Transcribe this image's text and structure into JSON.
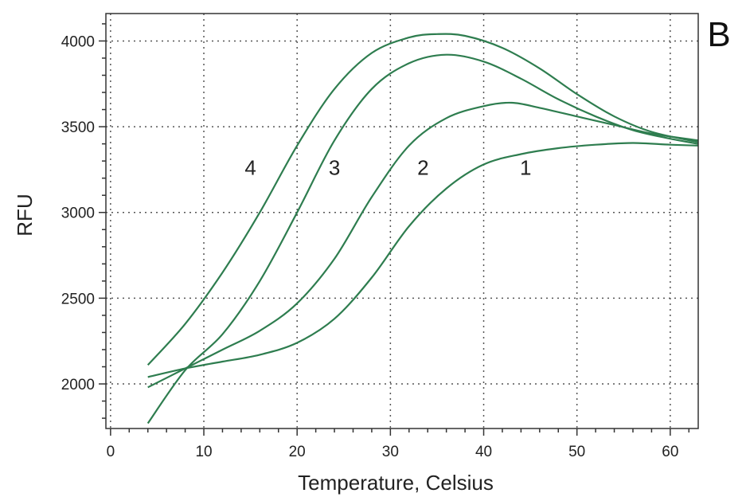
{
  "panel_label": "B",
  "colors": {
    "series": "#2e7d4f",
    "grid": "#555555",
    "frame": "#333333"
  },
  "chart_data": {
    "type": "line",
    "title": "",
    "xlabel": "Temperature, Celsius",
    "ylabel": "RFU",
    "xlim": [
      -0.5,
      63
    ],
    "ylim": [
      1740,
      4160
    ],
    "xticks": [
      0,
      10,
      20,
      30,
      40,
      50,
      60
    ],
    "xtick_labels": [
      "0",
      "10",
      "20",
      "30",
      "40",
      "50",
      "60"
    ],
    "yticks": [
      2000,
      2500,
      3000,
      3500,
      4000
    ],
    "ytick_labels": [
      "2000",
      "2500",
      "3000",
      "3500",
      "4000"
    ],
    "grid": true,
    "series": [
      {
        "name": "1",
        "points": [
          [
            4,
            2040
          ],
          [
            8,
            2090
          ],
          [
            12,
            2130
          ],
          [
            16,
            2170
          ],
          [
            20,
            2240
          ],
          [
            24,
            2380
          ],
          [
            28,
            2620
          ],
          [
            32,
            2920
          ],
          [
            36,
            3140
          ],
          [
            40,
            3280
          ],
          [
            44,
            3340
          ],
          [
            48,
            3375
          ],
          [
            52,
            3395
          ],
          [
            56,
            3405
          ],
          [
            60,
            3395
          ],
          [
            63,
            3390
          ]
        ]
      },
      {
        "name": "2",
        "points": [
          [
            4,
            1980
          ],
          [
            8,
            2090
          ],
          [
            12,
            2200
          ],
          [
            16,
            2310
          ],
          [
            20,
            2470
          ],
          [
            24,
            2730
          ],
          [
            28,
            3090
          ],
          [
            32,
            3390
          ],
          [
            36,
            3550
          ],
          [
            40,
            3620
          ],
          [
            43,
            3640
          ],
          [
            46,
            3610
          ],
          [
            50,
            3560
          ],
          [
            54,
            3510
          ],
          [
            58,
            3460
          ],
          [
            63,
            3420
          ]
        ]
      },
      {
        "name": "3",
        "points": [
          [
            4,
            1770
          ],
          [
            8,
            2080
          ],
          [
            12,
            2290
          ],
          [
            16,
            2600
          ],
          [
            20,
            3000
          ],
          [
            24,
            3420
          ],
          [
            28,
            3720
          ],
          [
            32,
            3870
          ],
          [
            36,
            3920
          ],
          [
            40,
            3880
          ],
          [
            44,
            3780
          ],
          [
            48,
            3660
          ],
          [
            52,
            3560
          ],
          [
            56,
            3480
          ],
          [
            60,
            3430
          ],
          [
            63,
            3400
          ]
        ]
      },
      {
        "name": "4",
        "points": [
          [
            4,
            2110
          ],
          [
            8,
            2350
          ],
          [
            12,
            2650
          ],
          [
            16,
            3000
          ],
          [
            20,
            3390
          ],
          [
            24,
            3720
          ],
          [
            28,
            3930
          ],
          [
            32,
            4020
          ],
          [
            35,
            4040
          ],
          [
            38,
            4030
          ],
          [
            42,
            3960
          ],
          [
            46,
            3840
          ],
          [
            50,
            3690
          ],
          [
            54,
            3560
          ],
          [
            58,
            3470
          ],
          [
            63,
            3410
          ]
        ]
      }
    ],
    "annotations": [
      {
        "text": "4",
        "x": 15,
        "y": 3220
      },
      {
        "text": "3",
        "x": 24,
        "y": 3220
      },
      {
        "text": "2",
        "x": 33.5,
        "y": 3220
      },
      {
        "text": "1",
        "x": 44.5,
        "y": 3220
      }
    ]
  }
}
